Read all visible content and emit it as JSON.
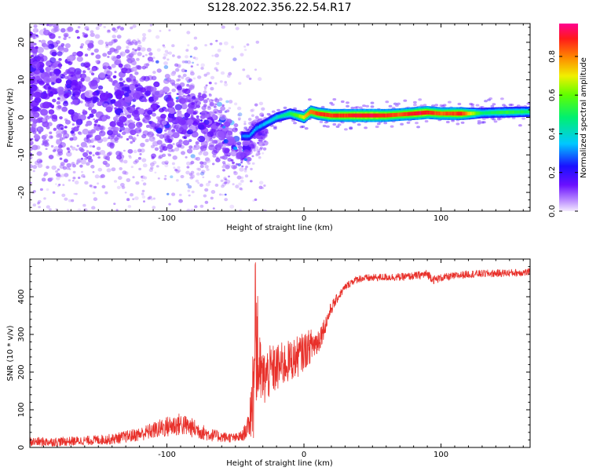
{
  "title": "S128.2022.356.22.54.R17",
  "colors": {
    "background": "#ffffff",
    "axis": "#000000",
    "snr_line": "#e8302a",
    "spectrogram_low": "#7a1cff",
    "spectrogram_ridge_edge": "#00c8ff",
    "spectrogram_ridge_core": "#ff2a2a"
  },
  "colorbar": {
    "label": "Normalized spectral amplitude",
    "ticks": [
      "0.0",
      "0.2",
      "0.4",
      "0.6",
      "0.8"
    ],
    "range": [
      0.0,
      0.97
    ],
    "colormap": "rainbow (white-violet-blue-cyan-green-yellow-orange-red-magenta)"
  },
  "chart_data": [
    {
      "type": "heatmap",
      "title": "",
      "xlabel": "Height of straight line (km)",
      "ylabel": "Frequency (Hz)",
      "xlim": [
        -200,
        165
      ],
      "ylim": [
        -25,
        25
      ],
      "xticks": [
        -100,
        0,
        100
      ],
      "xtick_labels": [
        "-100",
        "0",
        "100"
      ],
      "yticks": [
        -20,
        -10,
        0,
        10,
        20
      ],
      "ytick_labels": [
        "-20",
        "-10",
        "0",
        "10",
        "20"
      ],
      "grid": false,
      "features": {
        "scatter_region_x": [
          -200,
          -40
        ],
        "scatter_spread_hz_at_x": [
          [
            -200,
            25
          ],
          [
            -150,
            18
          ],
          [
            -100,
            12
          ],
          [
            -60,
            8
          ],
          [
            -40,
            4
          ]
        ],
        "scatter_centre_hz_at_x": [
          [
            -200,
            10
          ],
          [
            -150,
            6
          ],
          [
            -100,
            2
          ],
          [
            -60,
            -4
          ],
          [
            -45,
            -10
          ],
          [
            -35,
            -4
          ]
        ],
        "ridge_points": [
          [
            -45,
            -5
          ],
          [
            -40,
            -5
          ],
          [
            -35,
            -3
          ],
          [
            -30,
            -2
          ],
          [
            -25,
            -1
          ],
          [
            -20,
            0
          ],
          [
            -15,
            0.5
          ],
          [
            -10,
            1
          ],
          [
            -5,
            0.5
          ],
          [
            0,
            0
          ],
          [
            5,
            1.5
          ],
          [
            10,
            1
          ],
          [
            20,
            0.5
          ],
          [
            40,
            0.5
          ],
          [
            60,
            0.5
          ],
          [
            80,
            1
          ],
          [
            90,
            1.3
          ],
          [
            100,
            1
          ],
          [
            120,
            1
          ],
          [
            140,
            1.3
          ],
          [
            165,
            1.5
          ]
        ],
        "ridge_core_amplitude_at_x": [
          [
            -45,
            0.3
          ],
          [
            -30,
            0.35
          ],
          [
            -15,
            0.45
          ],
          [
            -5,
            0.6
          ],
          [
            5,
            0.85
          ],
          [
            15,
            0.9
          ],
          [
            30,
            0.9
          ],
          [
            50,
            0.95
          ],
          [
            70,
            0.85
          ],
          [
            85,
            0.95
          ],
          [
            100,
            0.85
          ],
          [
            115,
            0.9
          ],
          [
            130,
            0.5
          ],
          [
            150,
            0.55
          ],
          [
            165,
            0.5
          ]
        ]
      }
    },
    {
      "type": "line",
      "title": "",
      "xlabel": "Height of straight line (km)",
      "ylabel": "SNR (10 * v/v)",
      "xlim": [
        -200,
        165
      ],
      "ylim": [
        0,
        500
      ],
      "xticks": [
        -100,
        0,
        100
      ],
      "xtick_labels": [
        "-100",
        "0",
        "100"
      ],
      "yticks": [
        0,
        100,
        200,
        300,
        400
      ],
      "ytick_labels": [
        "0",
        "100",
        "200",
        "300",
        "400"
      ],
      "grid": false,
      "series": [
        {
          "name": "",
          "color": "#e8302a",
          "x": [
            -200,
            -180,
            -160,
            -140,
            -120,
            -110,
            -100,
            -95,
            -90,
            -80,
            -70,
            -60,
            -50,
            -45,
            -40,
            -37,
            -35,
            -32,
            -30,
            -25,
            -20,
            -15,
            -10,
            -5,
            0,
            5,
            10,
            15,
            20,
            25,
            30,
            35,
            40,
            50,
            60,
            70,
            80,
            90,
            95,
            100,
            110,
            120,
            140,
            165
          ],
          "y": [
            15,
            15,
            18,
            22,
            35,
            45,
            55,
            58,
            62,
            50,
            35,
            28,
            25,
            30,
            60,
            160,
            300,
            200,
            180,
            200,
            210,
            220,
            230,
            240,
            255,
            270,
            280,
            320,
            370,
            400,
            425,
            440,
            448,
            450,
            452,
            452,
            455,
            460,
            445,
            450,
            455,
            460,
            462,
            465
          ],
          "noise_amplitude": [
            12,
            12,
            12,
            14,
            18,
            22,
            28,
            30,
            30,
            25,
            18,
            14,
            12,
            15,
            30,
            150,
            180,
            90,
            80,
            70,
            65,
            60,
            55,
            55,
            50,
            45,
            40,
            25,
            18,
            12,
            10,
            10,
            10,
            10,
            10,
            10,
            10,
            12,
            12,
            10,
            10,
            10,
            10,
            10
          ]
        }
      ]
    }
  ]
}
